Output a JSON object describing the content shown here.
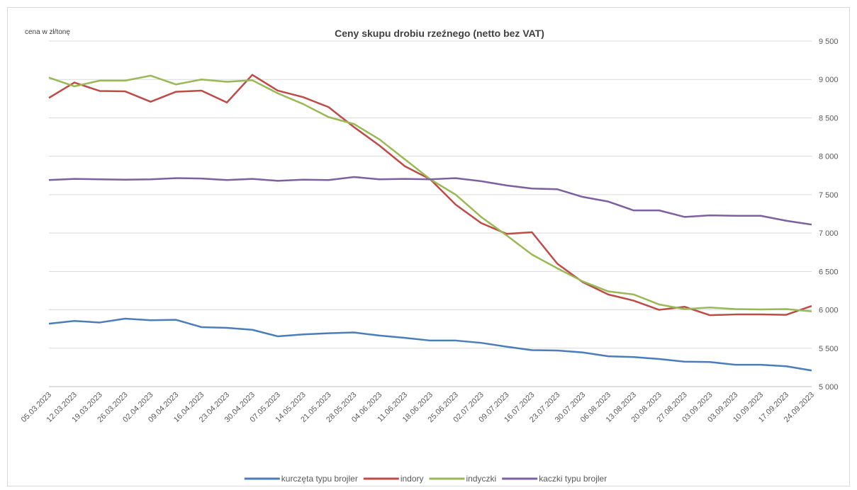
{
  "chart_data": {
    "type": "line",
    "title": "Ceny skupu drobiu rzeźnego (netto bez VAT)",
    "y_axis_label": "cena w zł/tonę",
    "categories": [
      "05.03.2023",
      "12.03.2023",
      "19.03.2023",
      "26.03.2023",
      "02.04.2023",
      "09.04.2023",
      "16.04.2023",
      "23.04.2023",
      "30.04.2023",
      "07.05.2023",
      "14.05.2023",
      "21.05.2023",
      "28.05.2023",
      "04.06.2023",
      "11.06.2023",
      "18.06.2023",
      "25.06.2023",
      "02.07.2023",
      "09.07.2023",
      "16.07.2023",
      "23.07.2023",
      "30.07.2023",
      "06.08.2023",
      "13.08.2023",
      "20.08.2023",
      "27.08.2023",
      "03.09.2023",
      "03.09.2023",
      "10.09.2023",
      "17.09.2023",
      "24.09.2023"
    ],
    "series": [
      {
        "name": "kurczęta typu brojler",
        "color": "#4a7ebb",
        "values": [
          5820,
          5855,
          5835,
          5885,
          5865,
          5870,
          5775,
          5765,
          5740,
          5655,
          5680,
          5695,
          5705,
          5665,
          5635,
          5600,
          5600,
          5570,
          5520,
          5475,
          5470,
          5445,
          5395,
          5385,
          5360,
          5325,
          5320,
          5285,
          5285,
          5265,
          5210
        ]
      },
      {
        "name": "indory",
        "color": "#be4b48",
        "values": [
          8760,
          8960,
          8850,
          8845,
          8710,
          8840,
          8855,
          8700,
          9060,
          8855,
          8770,
          8640,
          8380,
          8140,
          7870,
          7700,
          7370,
          7130,
          6990,
          7010,
          6600,
          6360,
          6200,
          6120,
          6000,
          6040,
          5930,
          5940,
          5940,
          5935,
          6050
        ]
      },
      {
        "name": "indyczki",
        "color": "#98b954",
        "values": [
          9025,
          8910,
          8985,
          8985,
          9050,
          8935,
          9000,
          8970,
          8990,
          8820,
          8680,
          8510,
          8420,
          8220,
          7960,
          7700,
          7500,
          7210,
          6970,
          6720,
          6540,
          6370,
          6240,
          6200,
          6070,
          6010,
          6030,
          6010,
          6005,
          6010,
          5980
        ]
      },
      {
        "name": "kaczki typu brojler",
        "color": "#7d60a0",
        "values": [
          7690,
          7705,
          7700,
          7695,
          7700,
          7715,
          7710,
          7690,
          7705,
          7680,
          7695,
          7690,
          7730,
          7700,
          7705,
          7700,
          7715,
          7675,
          7620,
          7580,
          7570,
          7470,
          7410,
          7295,
          7295,
          7210,
          7230,
          7225,
          7225,
          7160,
          7110
        ]
      }
    ],
    "ylim": [
      5000,
      9500
    ],
    "yticks": [
      {
        "value": 5000,
        "label": "5 000"
      },
      {
        "value": 5500,
        "label": "5 500"
      },
      {
        "value": 6000,
        "label": "6 000"
      },
      {
        "value": 6500,
        "label": "6 500"
      },
      {
        "value": 7000,
        "label": "7 000"
      },
      {
        "value": 7500,
        "label": "7 500"
      },
      {
        "value": 8000,
        "label": "8 000"
      },
      {
        "value": 8500,
        "label": "8 500"
      },
      {
        "value": 9000,
        "label": "9 000"
      },
      {
        "value": 9500,
        "label": "9 500"
      }
    ],
    "grid": true,
    "legend": "bottom"
  }
}
